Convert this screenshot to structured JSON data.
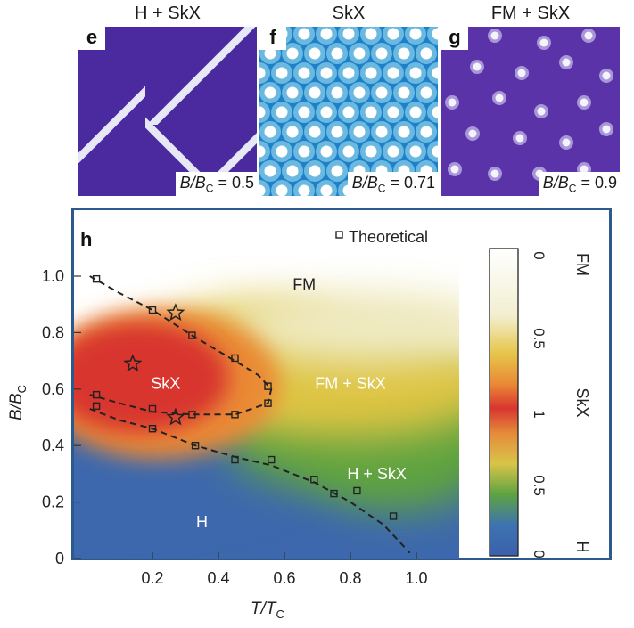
{
  "panels": [
    {
      "title": "H + SkX",
      "letter": "e",
      "ratio_label": "B/B",
      "ratio_sub": "C",
      "ratio_value": "= 0.5",
      "bg": "#4b2aa0",
      "fg": "#e6e8f6"
    },
    {
      "title": "SkX",
      "letter": "f",
      "ratio_label": "B/B",
      "ratio_sub": "C",
      "ratio_value": "= 0.71",
      "bg": "#1e80c8",
      "fg": "#ffffff"
    },
    {
      "title": "FM + SkX",
      "letter": "g",
      "ratio_label": "B/B",
      "ratio_sub": "C",
      "ratio_value": "= 0.9",
      "bg": "#5a33a8",
      "fg": "#f4f2fb"
    }
  ],
  "chart_data": {
    "type": "heatmap",
    "panel_letter": "h",
    "xlabel": {
      "main": "T/T",
      "sub": "C"
    },
    "ylabel": {
      "main": "B/B",
      "sub": "C"
    },
    "xlim": [
      0,
      1.1
    ],
    "ylim": [
      0,
      1.08
    ],
    "xticks": [
      0.2,
      0.4,
      0.6,
      0.8,
      1.0
    ],
    "xtick_labels": [
      "0.2",
      "0.4",
      "0.6",
      "0.8",
      "1.0"
    ],
    "yticks": [
      0,
      0.2,
      0.4,
      0.6,
      0.8,
      1.0
    ],
    "ytick_labels": [
      "0",
      "0.2",
      "0.4",
      "0.6",
      "0.8",
      "1.0"
    ],
    "legend": {
      "marker": "open-square",
      "label": "Theoretical",
      "placement": "top-center"
    },
    "region_labels": [
      {
        "text": "FM",
        "x": 0.66,
        "y": 0.97,
        "color": "#222222"
      },
      {
        "text": "SkX",
        "x": 0.24,
        "y": 0.62,
        "color": "#ffffff"
      },
      {
        "text": "FM + SkX",
        "x": 0.8,
        "y": 0.62,
        "color": "#ffffff"
      },
      {
        "text": "H + SkX",
        "x": 0.88,
        "y": 0.3,
        "color": "#ffffff"
      },
      {
        "text": "H",
        "x": 0.35,
        "y": 0.13,
        "color": "#ffffff"
      }
    ],
    "theoretical_points": [
      {
        "x": 0.03,
        "y": 0.99
      },
      {
        "x": 0.2,
        "y": 0.88
      },
      {
        "x": 0.32,
        "y": 0.79
      },
      {
        "x": 0.45,
        "y": 0.71
      },
      {
        "x": 0.55,
        "y": 0.61
      },
      {
        "x": 0.55,
        "y": 0.55
      },
      {
        "x": 0.45,
        "y": 0.51
      },
      {
        "x": 0.32,
        "y": 0.51
      },
      {
        "x": 0.2,
        "y": 0.53
      },
      {
        "x": 0.03,
        "y": 0.58
      },
      {
        "x": 0.03,
        "y": 0.54
      },
      {
        "x": 0.2,
        "y": 0.46
      },
      {
        "x": 0.33,
        "y": 0.4
      },
      {
        "x": 0.45,
        "y": 0.35
      },
      {
        "x": 0.56,
        "y": 0.35
      },
      {
        "x": 0.69,
        "y": 0.28
      },
      {
        "x": 0.75,
        "y": 0.23
      },
      {
        "x": 0.82,
        "y": 0.24
      },
      {
        "x": 0.93,
        "y": 0.15
      }
    ],
    "upper_boundary": [
      [
        0.01,
        1.0
      ],
      [
        0.1,
        0.94
      ],
      [
        0.2,
        0.88
      ],
      [
        0.32,
        0.79
      ],
      [
        0.45,
        0.7
      ],
      [
        0.52,
        0.65
      ],
      [
        0.56,
        0.6
      ],
      [
        0.55,
        0.55
      ],
      [
        0.45,
        0.51
      ],
      [
        0.32,
        0.51
      ],
      [
        0.2,
        0.52
      ],
      [
        0.1,
        0.55
      ],
      [
        0.01,
        0.58
      ]
    ],
    "lower_boundary": [
      [
        0.01,
        0.53
      ],
      [
        0.1,
        0.49
      ],
      [
        0.2,
        0.46
      ],
      [
        0.33,
        0.4
      ],
      [
        0.45,
        0.36
      ],
      [
        0.56,
        0.33
      ],
      [
        0.69,
        0.27
      ],
      [
        0.8,
        0.2
      ],
      [
        0.9,
        0.12
      ],
      [
        0.98,
        0.02
      ]
    ],
    "experimental_points": [
      {
        "x": 0.27,
        "y": 0.87
      },
      {
        "x": 0.14,
        "y": 0.69
      },
      {
        "x": 0.27,
        "y": 0.5
      }
    ],
    "colorbar": {
      "labels": [
        {
          "text": "0",
          "value": 0.0
        },
        {
          "text": "0.5",
          "value": 0.5
        },
        {
          "text": "1",
          "value": 1.0
        },
        {
          "text": "0.5",
          "value": 0.5
        },
        {
          "text": "0",
          "value": 0.0
        }
      ],
      "phase_labels": [
        "FM",
        "SkX",
        "H"
      ]
    },
    "colors": {
      "h": "#3c68ad",
      "green": "#5ea341",
      "yellow": "#ddc443",
      "orange": "#ea8a36",
      "red": "#d8352f",
      "light_yellow": "#efeac2",
      "fm": "#ffffff",
      "frame": "#2d5a8c"
    }
  }
}
